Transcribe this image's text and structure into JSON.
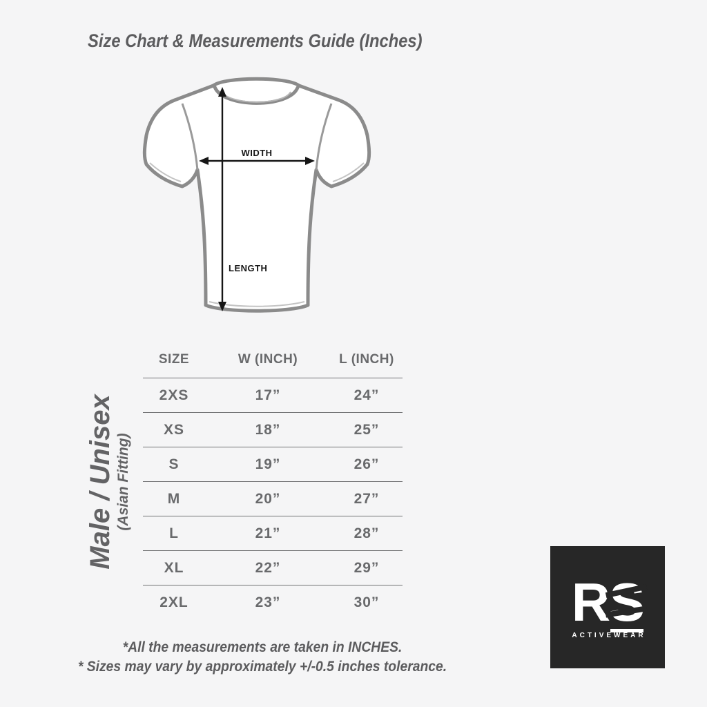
{
  "title": "Size Chart & Measurements Guide (Inches)",
  "diagram": {
    "width_label": "WIDTH",
    "length_label": "LENGTH"
  },
  "side_label": {
    "main": "Male / Unisex",
    "sub": "(Asian Fitting)"
  },
  "table": {
    "headers": [
      "SIZE",
      "W (INCH)",
      "L (INCH)"
    ],
    "rows": [
      [
        "2XS",
        "17”",
        "24”"
      ],
      [
        "XS",
        "18”",
        "25”"
      ],
      [
        "S",
        "19”",
        "26”"
      ],
      [
        "M",
        "20”",
        "27”"
      ],
      [
        "L",
        "21”",
        "28”"
      ],
      [
        "XL",
        "22”",
        "29”"
      ],
      [
        "2XL",
        "23”",
        "30”"
      ]
    ]
  },
  "chart_data": {
    "type": "table",
    "title": "Size Chart & Measurements Guide (Inches)",
    "columns": [
      "SIZE",
      "W (INCH)",
      "L (INCH)"
    ],
    "sizes": [
      "2XS",
      "XS",
      "S",
      "M",
      "L",
      "XL",
      "2XL"
    ],
    "width_inches": [
      17,
      18,
      19,
      20,
      21,
      22,
      23
    ],
    "length_inches": [
      24,
      25,
      26,
      27,
      28,
      29,
      30
    ],
    "fit": "Male / Unisex (Asian Fitting)",
    "tolerance_note": "+/-0.5 inches"
  },
  "logo": {
    "brand_r": "R",
    "brand_s": "S",
    "sub": "ACTIVEWEAR"
  },
  "footer": {
    "line1": "*All the measurements are taken in INCHES.",
    "line2": "* Sizes may vary by approximately +/-0.5 inches tolerance."
  },
  "colors": {
    "background": "#f5f5f6",
    "heading_text": "#5c5c5e",
    "table_text": "#696a6c",
    "table_line": "#6f7072",
    "shirt_outline": "#8b8b8b",
    "arrow": "#161616",
    "logo_background": "#272727",
    "logo_text": "#ffffff"
  }
}
